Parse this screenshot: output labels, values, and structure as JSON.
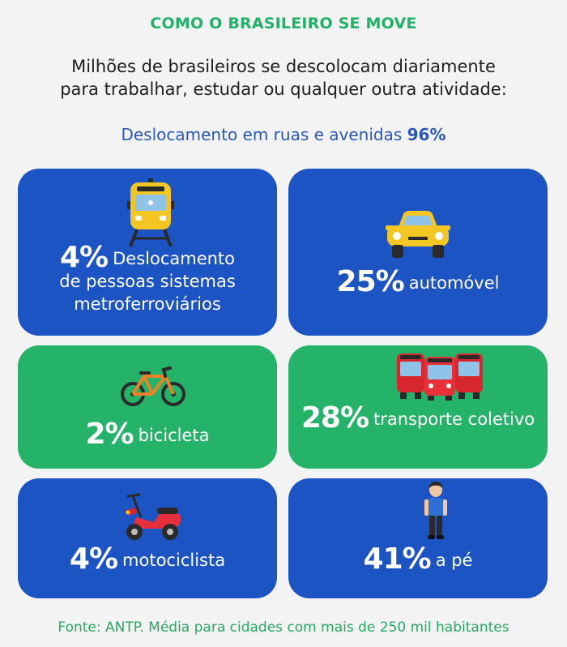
{
  "title": "COMO O BRASILEIRO SE MOVE",
  "intro": {
    "line1": "Milhões de brasileiros se descolocam diariamente",
    "line2": "para trabalhar, estudar ou qualquer outra atividade:"
  },
  "subtitle": {
    "label": "Deslocamento em ruas e avenidas",
    "value": "96%"
  },
  "colors": {
    "title_green": "#21b26a",
    "card_blue": "#1d54c4",
    "card_green": "#25b36a",
    "subtitle_blue": "#2c59b8",
    "footer_green": "#2aa864"
  },
  "cards": [
    {
      "pct": "4%",
      "line1": "Deslocamento",
      "line2": "de pessoas sistemas",
      "line3": "metroferroviários",
      "icon": "train-icon"
    },
    {
      "pct": "25%",
      "label": "automóvel",
      "icon": "car-icon"
    },
    {
      "pct": "2%",
      "label": "bicicleta",
      "icon": "bicycle-icon"
    },
    {
      "pct": "28%",
      "label": "transporte coletivo",
      "icon": "bus-icon"
    },
    {
      "pct": "4%",
      "label": "motociclista",
      "icon": "scooter-icon"
    },
    {
      "pct": "41%",
      "label": "a pé",
      "icon": "pedestrian-icon"
    }
  ],
  "footer": "Fonte: ANTP. Média para cidades com mais de 250 mil habitantes"
}
